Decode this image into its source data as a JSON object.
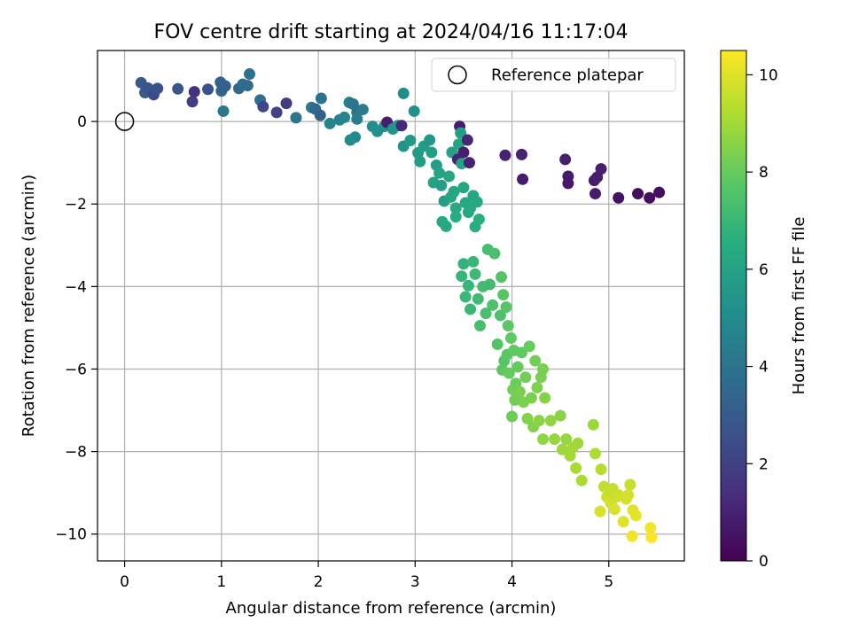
{
  "chart_data": {
    "type": "scatter",
    "title": "FOV centre drift starting at 2024/04/16 11:17:04",
    "xlabel": "Angular distance from reference (arcmin)",
    "ylabel": "Rotation from reference (arcmin)",
    "xlim": [
      -0.28,
      5.78
    ],
    "ylim": [
      -10.65,
      1.72
    ],
    "xticks": [
      0,
      1,
      2,
      3,
      4,
      5
    ],
    "yticks": [
      0,
      -2,
      -4,
      -6,
      -8,
      -10
    ],
    "grid": true,
    "colormap": "viridis",
    "colorbar": {
      "label": "Hours from first FF file",
      "min": 0,
      "max": 10.5,
      "ticks": [
        0,
        2,
        4,
        6,
        8,
        10
      ]
    },
    "legend": {
      "position": "top-right",
      "entries": [
        "Reference platepar"
      ]
    },
    "reference_point": {
      "x": 0,
      "y": 0,
      "label": "Reference platepar"
    },
    "points": [
      [
        0.17,
        0.94,
        2.9
      ],
      [
        0.21,
        0.7,
        3.0
      ],
      [
        0.24,
        0.81,
        2.7
      ],
      [
        0.3,
        0.65,
        2.3
      ],
      [
        0.34,
        0.8,
        2.6
      ],
      [
        0.55,
        0.79,
        2.8
      ],
      [
        0.7,
        0.48,
        1.9
      ],
      [
        0.72,
        0.72,
        1.5
      ],
      [
        0.86,
        0.78,
        2.6
      ],
      [
        0.99,
        0.95,
        3.3
      ],
      [
        1.0,
        0.74,
        3.4
      ],
      [
        1.04,
        0.86,
        3.2
      ],
      [
        1.02,
        0.25,
        4.2
      ],
      [
        1.18,
        0.8,
        3.5
      ],
      [
        1.22,
        0.9,
        3.7
      ],
      [
        1.27,
        0.87,
        3.6
      ],
      [
        1.29,
        1.15,
        3.9
      ],
      [
        1.4,
        0.52,
        3.8
      ],
      [
        1.43,
        0.36,
        2.2
      ],
      [
        1.57,
        0.22,
        2.1
      ],
      [
        1.67,
        0.44,
        1.8
      ],
      [
        1.77,
        0.09,
        4.1
      ],
      [
        1.93,
        0.34,
        4.5
      ],
      [
        1.97,
        0.3,
        3.5
      ],
      [
        2.02,
        0.15,
        3.2
      ],
      [
        2.03,
        0.56,
        4.0
      ],
      [
        2.12,
        -0.05,
        4.7
      ],
      [
        2.22,
        0.04,
        4.6
      ],
      [
        2.27,
        0.1,
        4.8
      ],
      [
        2.32,
        0.46,
        4.5
      ],
      [
        2.36,
        0.42,
        4.0
      ],
      [
        2.4,
        0.22,
        3.9
      ],
      [
        2.38,
        -0.38,
        4.9
      ],
      [
        2.33,
        -0.45,
        5.0
      ],
      [
        2.4,
        0.06,
        4.4
      ],
      [
        2.46,
        0.29,
        4.3
      ],
      [
        2.56,
        -0.12,
        5.1
      ],
      [
        2.61,
        -0.24,
        5.3
      ],
      [
        2.68,
        -0.12,
        5.2
      ],
      [
        2.71,
        -0.02,
        0.9
      ],
      [
        2.77,
        -0.18,
        5.4
      ],
      [
        2.82,
        -0.1,
        5.5
      ],
      [
        2.86,
        -0.1,
        1.2
      ],
      [
        2.88,
        0.68,
        5.0
      ],
      [
        2.88,
        -0.6,
        5.4
      ],
      [
        2.95,
        -0.46,
        5.6
      ],
      [
        2.99,
        0.25,
        5.2
      ],
      [
        3.03,
        -0.76,
        5.7
      ],
      [
        3.05,
        -0.97,
        5.8
      ],
      [
        3.09,
        -0.6,
        5.8
      ],
      [
        3.15,
        -0.45,
        5.5
      ],
      [
        3.17,
        -0.75,
        5.9
      ],
      [
        3.19,
        -1.48,
        6.0
      ],
      [
        3.22,
        -1.06,
        5.8
      ],
      [
        3.25,
        -1.25,
        6.1
      ],
      [
        3.27,
        -1.55,
        5.9
      ],
      [
        3.3,
        -1.93,
        5.9
      ],
      [
        3.28,
        -2.43,
        6.3
      ],
      [
        3.32,
        -2.54,
        6.4
      ],
      [
        3.35,
        -1.33,
        6.2
      ],
      [
        3.37,
        -1.83,
        6.2
      ],
      [
        3.38,
        -0.75,
        6.0
      ],
      [
        3.4,
        -1.7,
        6.2
      ],
      [
        3.42,
        -2.1,
        6.3
      ],
      [
        3.42,
        -2.31,
        6.5
      ],
      [
        3.44,
        -0.92,
        1.0
      ],
      [
        3.45,
        -0.55,
        6.1
      ],
      [
        3.46,
        -0.12,
        0.8
      ],
      [
        3.47,
        -0.28,
        5.9
      ],
      [
        3.48,
        -1.02,
        6.0
      ],
      [
        3.5,
        -1.6,
        6.2
      ],
      [
        3.5,
        -0.75,
        0.9
      ],
      [
        3.52,
        -1.97,
        6.3
      ],
      [
        3.54,
        -0.45,
        1.1
      ],
      [
        3.55,
        -2.2,
        6.2
      ],
      [
        3.56,
        -1.0,
        1.0
      ],
      [
        3.57,
        -2.1,
        6.4
      ],
      [
        3.6,
        -1.8,
        6.2
      ],
      [
        3.62,
        -2.55,
        6.5
      ],
      [
        3.64,
        -1.95,
        6.3
      ],
      [
        3.66,
        -2.37,
        6.6
      ],
      [
        3.5,
        -3.45,
        6.8
      ],
      [
        3.48,
        -3.75,
        6.9
      ],
      [
        3.52,
        -4.25,
        7.0
      ],
      [
        3.55,
        -3.98,
        6.9
      ],
      [
        3.57,
        -4.55,
        7.0
      ],
      [
        3.6,
        -3.4,
        7.0
      ],
      [
        3.62,
        -3.7,
        7.1
      ],
      [
        3.65,
        -4.3,
        7.2
      ],
      [
        3.67,
        -4.95,
        7.3
      ],
      [
        3.7,
        -4.0,
        7.2
      ],
      [
        3.73,
        -4.65,
        7.4
      ],
      [
        3.75,
        -3.1,
        7.3
      ],
      [
        3.77,
        -3.95,
        7.2
      ],
      [
        3.8,
        -4.45,
        7.5
      ],
      [
        3.82,
        -3.2,
        7.4
      ],
      [
        3.85,
        -5.4,
        7.6
      ],
      [
        3.88,
        -4.7,
        7.5
      ],
      [
        3.89,
        -3.77,
        7.6
      ],
      [
        3.9,
        -6.02,
        7.8
      ],
      [
        3.91,
        -4.2,
        7.7
      ],
      [
        3.92,
        -5.8,
        7.7
      ],
      [
        3.93,
        -0.82,
        1.0
      ],
      [
        3.94,
        -4.5,
        7.7
      ],
      [
        3.95,
        -5.65,
        7.8
      ],
      [
        3.96,
        -4.95,
        7.8
      ],
      [
        3.97,
        -6.1,
        8.0
      ],
      [
        3.99,
        -5.25,
        7.9
      ],
      [
        4.0,
        -7.15,
        8.1
      ],
      [
        4.01,
        -6.5,
        8.2
      ],
      [
        4.02,
        -5.55,
        7.9
      ],
      [
        4.03,
        -6.75,
        8.2
      ],
      [
        4.04,
        -6.35,
        8.1
      ],
      [
        4.06,
        -5.95,
        8.0
      ],
      [
        4.08,
        -6.55,
        8.3
      ],
      [
        4.1,
        -5.6,
        7.9
      ],
      [
        4.1,
        -0.8,
        1.0
      ],
      [
        4.11,
        -1.4,
        0.8
      ],
      [
        4.12,
        -6.8,
        8.4
      ],
      [
        4.14,
        -6.2,
        8.2
      ],
      [
        4.16,
        -7.2,
        8.5
      ],
      [
        4.18,
        -5.45,
        8.0
      ],
      [
        4.2,
        -6.7,
        8.3
      ],
      [
        4.22,
        -7.4,
        8.5
      ],
      [
        4.24,
        -5.8,
        8.2
      ],
      [
        4.26,
        -6.45,
        8.4
      ],
      [
        4.28,
        -7.25,
        8.6
      ],
      [
        4.3,
        -6.2,
        8.3
      ],
      [
        4.32,
        -6.0,
        8.3
      ],
      [
        4.32,
        -7.7,
        8.7
      ],
      [
        4.34,
        -6.7,
        8.5
      ],
      [
        4.4,
        -7.25,
        8.7
      ],
      [
        4.44,
        -7.7,
        8.8
      ],
      [
        4.5,
        -7.13,
        8.6
      ],
      [
        4.52,
        -7.95,
        8.9
      ],
      [
        4.55,
        -0.92,
        0.9
      ],
      [
        4.56,
        -7.7,
        8.8
      ],
      [
        4.58,
        -1.33,
        0.8
      ],
      [
        4.58,
        -1.5,
        0.7
      ],
      [
        4.6,
        -8.1,
        9.0
      ],
      [
        4.63,
        -7.9,
        9.0
      ],
      [
        4.66,
        -8.4,
        9.1
      ],
      [
        4.68,
        -7.8,
        8.9
      ],
      [
        4.72,
        -8.7,
        9.1
      ],
      [
        4.84,
        -7.35,
        8.9
      ],
      [
        4.85,
        -1.43,
        0.8
      ],
      [
        4.86,
        -1.75,
        0.8
      ],
      [
        4.86,
        -8.05,
        9.2
      ],
      [
        4.88,
        -1.35,
        0.9
      ],
      [
        4.92,
        -8.43,
        9.3
      ],
      [
        4.92,
        -1.15,
        0.9
      ],
      [
        4.95,
        -8.85,
        9.5
      ],
      [
        4.91,
        -9.45,
        9.9
      ],
      [
        4.98,
        -9.1,
        9.7
      ],
      [
        5.0,
        -8.95,
        9.6
      ],
      [
        5.02,
        -9.25,
        9.8
      ],
      [
        5.04,
        -8.9,
        9.6
      ],
      [
        5.06,
        -9.4,
        9.9
      ],
      [
        5.08,
        -9.1,
        9.7
      ],
      [
        5.1,
        -9.05,
        9.7
      ],
      [
        5.1,
        -1.85,
        0.5
      ],
      [
        5.15,
        -9.7,
        10.0
      ],
      [
        5.18,
        -9.15,
        9.8
      ],
      [
        5.2,
        -9.05,
        9.8
      ],
      [
        5.22,
        -8.8,
        9.6
      ],
      [
        5.24,
        -10.05,
        10.3
      ],
      [
        5.25,
        -9.42,
        10.0
      ],
      [
        5.28,
        -9.55,
        10.1
      ],
      [
        5.3,
        -1.75,
        0.4
      ],
      [
        5.43,
        -9.85,
        10.3
      ],
      [
        5.42,
        -1.85,
        0.4
      ],
      [
        5.44,
        -10.08,
        10.4
      ],
      [
        5.52,
        -1.72,
        0.4
      ]
    ]
  }
}
